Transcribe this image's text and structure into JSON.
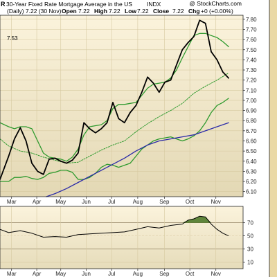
{
  "header": {
    "watermark": "@ StockCharts.com",
    "symbol_fragment": "R",
    "title": "30-Year Fixed Rate Mortgage Average in the US",
    "exchange": "INDX",
    "period_line": "(Daily) 7.22 (30 Nov)",
    "ohlc": {
      "open_label": "Open",
      "open": "7.22",
      "high_label": "High",
      "high": "7.22",
      "low_label": "Low",
      "low": "7.22",
      "close_label": "Close",
      "close": "7.22",
      "chg_label": "Chg",
      "chg": "+0 (+0.00%)"
    },
    "bb_value": "7.53"
  },
  "colors": {
    "panel_top": "#fbf3dc",
    "panel_bottom": "#e3d8b4",
    "price": "#000000",
    "band": "#2e9a2e",
    "mid_ma": "#2e9a2e",
    "long_ma": "#2a2aa8",
    "rsi": "#000000",
    "rsi_fill": "#4f7a2a",
    "axis": "#222222",
    "right_strip": "#ead9a6"
  },
  "chart_data": [
    {
      "type": "line",
      "name": "price-panel",
      "y_ticks": [
        "7.80",
        "7.70",
        "7.60",
        "7.50",
        "7.40",
        "7.30",
        "7.20",
        "7.10",
        "7.00",
        "6.90",
        "6.80",
        "6.70",
        "6.60",
        "6.50",
        "6.40",
        "6.30",
        "6.20",
        "6.10"
      ],
      "ylim": [
        6.05,
        7.84
      ],
      "x_months": [
        "Mar",
        "Apr",
        "May",
        "Jun",
        "Jul",
        "Aug",
        "Sep",
        "Oct",
        "Nov"
      ],
      "x_month_pos": [
        0.5,
        4.85,
        9.0,
        13.4,
        17.8,
        22.3,
        26.9,
        31.3,
        35.8
      ],
      "xlim": [
        -1.5,
        40.5
      ],
      "series": [
        {
          "role": "price",
          "x": [
            -1.5,
            0,
            1,
            2,
            3,
            4,
            5,
            6,
            7,
            8,
            9,
            10,
            11,
            12,
            13,
            14,
            15,
            16,
            17,
            18,
            19,
            20,
            21,
            22,
            23,
            24,
            25,
            26,
            27,
            28,
            29,
            30,
            31,
            32,
            33,
            34,
            35,
            36,
            37,
            38
          ],
          "values": [
            6.22,
            6.45,
            6.62,
            6.73,
            6.6,
            6.38,
            6.3,
            6.27,
            6.42,
            6.43,
            6.4,
            6.38,
            6.41,
            6.48,
            6.78,
            6.72,
            6.68,
            6.72,
            6.78,
            6.98,
            6.82,
            6.78,
            6.88,
            6.95,
            7.08,
            7.23,
            7.17,
            7.08,
            7.18,
            7.2,
            7.35,
            7.5,
            7.57,
            7.63,
            7.79,
            7.76,
            7.48,
            7.4,
            7.28,
            7.22
          ]
        },
        {
          "role": "upper-band",
          "x": [
            -1.5,
            0,
            1,
            2,
            3,
            4,
            5,
            6,
            7,
            8,
            9,
            10,
            11,
            12,
            13,
            14,
            15,
            16,
            17,
            18,
            19,
            20,
            21,
            22,
            23,
            24,
            25,
            26,
            27,
            28,
            29,
            30,
            31,
            32,
            33,
            34,
            35,
            36,
            37,
            38
          ],
          "values": [
            6.78,
            6.74,
            6.72,
            6.74,
            6.74,
            6.72,
            6.6,
            6.48,
            6.44,
            6.43,
            6.42,
            6.4,
            6.44,
            6.52,
            6.66,
            6.74,
            6.75,
            6.76,
            6.8,
            6.92,
            6.96,
            6.96,
            6.97,
            6.98,
            7.05,
            7.12,
            7.16,
            7.17,
            7.18,
            7.22,
            7.3,
            7.42,
            7.53,
            7.64,
            7.66,
            7.66,
            7.64,
            7.62,
            7.58,
            7.53
          ]
        },
        {
          "role": "lower-band",
          "x": [
            -1.5,
            0,
            1,
            2,
            3,
            4,
            5,
            6,
            7,
            8,
            9,
            10,
            11,
            12,
            13,
            14,
            15,
            16,
            17,
            18,
            19,
            20,
            21,
            22,
            23,
            24,
            25,
            26,
            27,
            28,
            29,
            30,
            31,
            32,
            33,
            34,
            35,
            36,
            37,
            38
          ],
          "values": [
            6.2,
            6.2,
            6.24,
            6.24,
            6.25,
            6.23,
            6.22,
            6.24,
            6.28,
            6.29,
            6.31,
            6.31,
            6.29,
            6.22,
            6.22,
            6.24,
            6.28,
            6.34,
            6.37,
            6.36,
            6.34,
            6.36,
            6.38,
            6.45,
            6.52,
            6.56,
            6.6,
            6.62,
            6.63,
            6.64,
            6.62,
            6.6,
            6.62,
            6.65,
            6.7,
            6.78,
            6.88,
            6.95,
            6.98,
            7.02
          ]
        },
        {
          "role": "middle-ma",
          "x": [
            -1.5,
            0,
            2,
            4,
            6,
            8,
            10,
            12,
            14,
            16,
            18,
            20,
            22,
            24,
            26,
            28,
            30,
            32,
            34,
            36,
            38
          ],
          "values": [
            6.62,
            6.55,
            6.5,
            6.48,
            6.44,
            6.41,
            6.38,
            6.39,
            6.45,
            6.51,
            6.56,
            6.6,
            6.69,
            6.77,
            6.84,
            6.9,
            6.97,
            7.07,
            7.14,
            7.2,
            7.27
          ]
        },
        {
          "role": "long-ma",
          "x": [
            6.5,
            8,
            10,
            12,
            14,
            16,
            18,
            20,
            22,
            24,
            26,
            28,
            30,
            32,
            34,
            36,
            38
          ],
          "values": [
            6.05,
            6.08,
            6.13,
            6.19,
            6.25,
            6.31,
            6.37,
            6.43,
            6.5,
            6.56,
            6.6,
            6.62,
            6.64,
            6.66,
            6.7,
            6.74,
            6.78
          ]
        }
      ]
    },
    {
      "type": "area",
      "name": "rsi-panel",
      "y_ticks": [
        "70",
        "50",
        "30",
        "10"
      ],
      "ylim": [
        0,
        95
      ],
      "x_months": [
        "Mar",
        "Apr",
        "May",
        "Jun",
        "Jul",
        "Aug",
        "Sep",
        "Oct",
        "Nov"
      ],
      "x_month_pos": [
        0.5,
        4.85,
        9.0,
        13.4,
        17.8,
        22.3,
        26.9,
        31.3,
        35.8
      ],
      "xlim": [
        -1.5,
        40.5
      ],
      "series": [
        {
          "role": "rsi",
          "x": [
            -1.5,
            0,
            2,
            4,
            6,
            8,
            10,
            12,
            14,
            16,
            18,
            20,
            22,
            24,
            26,
            28,
            30,
            31,
            32,
            33,
            34,
            35,
            36,
            37,
            38
          ],
          "values": [
            60,
            55,
            58,
            54,
            48,
            49,
            48,
            52,
            53,
            54,
            55,
            56,
            60,
            64,
            62,
            66,
            68,
            74,
            76,
            80,
            79,
            68,
            60,
            54,
            50
          ]
        }
      ]
    }
  ]
}
